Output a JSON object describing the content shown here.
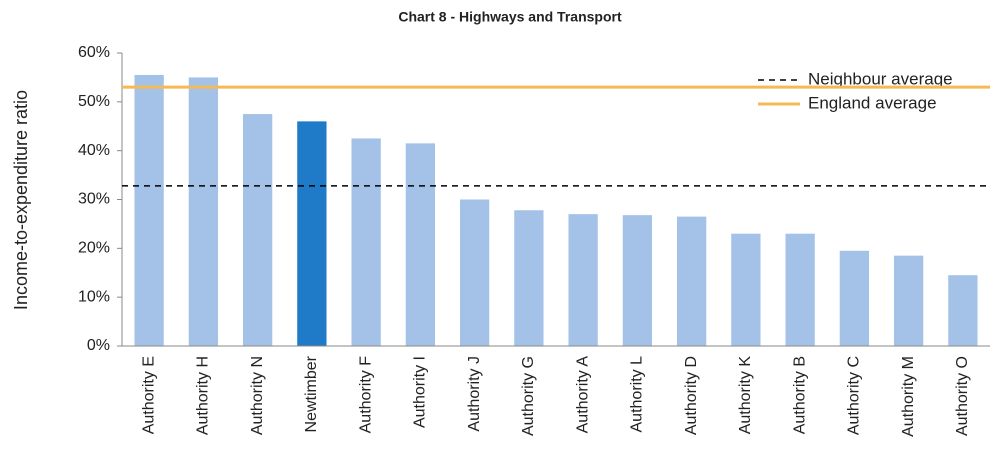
{
  "chart_data": {
    "type": "bar",
    "title": "Chart 8 - Highways and Transport",
    "y_label": "Income-to-expenditure ratio",
    "categories": [
      "Authority E",
      "Authority H",
      "Authority N",
      "Newtimber",
      "Authority F",
      "Authority I",
      "Authority J",
      "Authority G",
      "Authority A",
      "Authority L",
      "Authority D",
      "Authority K",
      "Authority B",
      "Authority C",
      "Authority M",
      "Authority O"
    ],
    "values": [
      55.5,
      55,
      47.5,
      46,
      42.5,
      41.5,
      30,
      27.8,
      27,
      26.8,
      26.5,
      23,
      23,
      19.5,
      18.5,
      14.5
    ],
    "colors": [
      "#a4c2e8",
      "#a4c2e8",
      "#a4c2e8",
      "#1f7bc8",
      "#a4c2e8",
      "#a4c2e8",
      "#a4c2e8",
      "#a4c2e8",
      "#a4c2e8",
      "#a4c2e8",
      "#a4c2e8",
      "#a4c2e8",
      "#a4c2e8",
      "#a4c2e8",
      "#a4c2e8",
      "#a4c2e8"
    ],
    "ylim": [
      0,
      60
    ],
    "yticks": [
      {
        "value": 0,
        "label": "0%"
      },
      {
        "value": 10,
        "label": "10%"
      },
      {
        "value": 20,
        "label": "20%"
      },
      {
        "value": 30,
        "label": "30%"
      },
      {
        "value": 40,
        "label": "40%"
      },
      {
        "value": 50,
        "label": "50%"
      },
      {
        "value": 60,
        "label": "60%"
      }
    ],
    "grid": false,
    "legend": "upper right",
    "reference_lines": [
      {
        "name": "Neighbour average",
        "value": 32.8,
        "color": "#000000",
        "style": "dashed"
      },
      {
        "name": "England average",
        "value": 53,
        "color": "#f5b955",
        "style": "solid"
      }
    ]
  }
}
